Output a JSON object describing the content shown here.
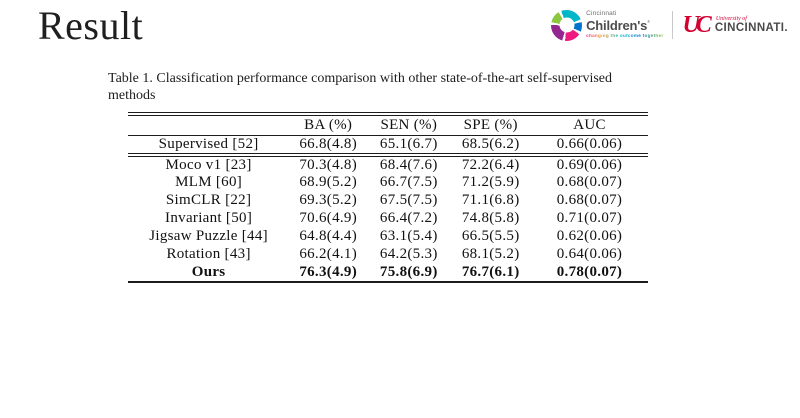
{
  "slide": {
    "title": "Result"
  },
  "logos": {
    "childrens": {
      "line1": "Cincinnati",
      "line2": "Children's",
      "trademark": "®",
      "tagline": "changing the outcome together"
    },
    "uc": {
      "monogram": "UC",
      "small": "University of",
      "big": "CINCINNATI."
    }
  },
  "table": {
    "caption": "Table 1. Classification performance comparison with other state-of-the-art self-supervised methods",
    "headers": [
      "",
      "BA (%)",
      "SEN (%)",
      "SPE (%)",
      "AUC"
    ],
    "rows": [
      {
        "cells": [
          "Supervised [52]",
          "66.8(4.8)",
          "65.1(6.7)",
          "68.5(6.2)",
          "0.66(0.06)"
        ],
        "separator_below": true,
        "bold": false
      },
      {
        "cells": [
          "Moco v1 [23]",
          "70.3(4.8)",
          "68.4(7.6)",
          "72.2(6.4)",
          "0.69(0.06)"
        ],
        "separator_below": false,
        "bold": false
      },
      {
        "cells": [
          "MLM [60]",
          "68.9(5.2)",
          "66.7(7.5)",
          "71.2(5.9)",
          "0.68(0.07)"
        ],
        "separator_below": false,
        "bold": false
      },
      {
        "cells": [
          "SimCLR [22]",
          "69.3(5.2)",
          "67.5(7.5)",
          "71.1(6.8)",
          "0.68(0.07)"
        ],
        "separator_below": false,
        "bold": false
      },
      {
        "cells": [
          "Invariant [50]",
          "70.6(4.9)",
          "66.4(7.2)",
          "74.8(5.8)",
          "0.71(0.07)"
        ],
        "separator_below": false,
        "bold": false
      },
      {
        "cells": [
          "Jigsaw Puzzle [44]",
          "64.8(4.4)",
          "63.1(5.4)",
          "66.5(5.5)",
          "0.62(0.06)"
        ],
        "separator_below": false,
        "bold": false
      },
      {
        "cells": [
          "Rotation [43]",
          "66.2(4.1)",
          "64.2(5.3)",
          "68.1(5.2)",
          "0.64(0.06)"
        ],
        "separator_below": false,
        "bold": false
      },
      {
        "cells": [
          "Ours",
          "76.3(4.9)",
          "75.8(6.9)",
          "76.7(6.1)",
          "0.78(0.07)"
        ],
        "separator_below": false,
        "bold": true
      }
    ]
  },
  "colors": {
    "uc_red": "#d50032",
    "childrens_teal": "#00b6c9",
    "childrens_magenta": "#93268f",
    "childrens_pink": "#ed1a7f",
    "childrens_green": "#8dc63f",
    "childrens_blue": "#0072ce",
    "text": "#1c1c1c",
    "background": "#ffffff"
  }
}
